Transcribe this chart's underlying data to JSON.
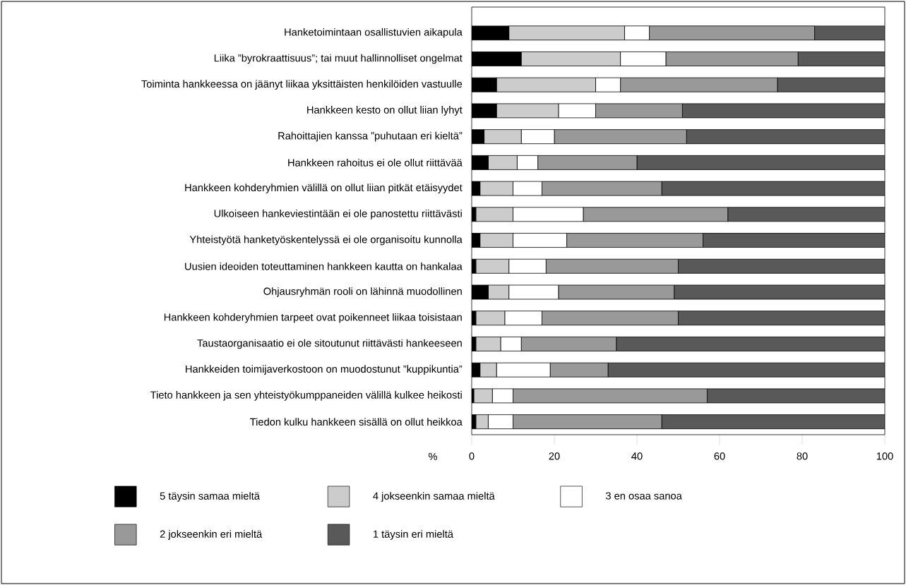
{
  "chart_data": {
    "type": "bar",
    "orientation": "horizontal",
    "stacked": true,
    "categories": [
      "Hanketoimintaan osallistuvien aikapula",
      "Liika ”byrokraattisuus”; tai muut hallinnolliset ongelmat",
      "Toiminta hankkeessa on jäänyt liikaa yksittäisten henkilöiden vastuulle",
      "Hankkeen kesto on ollut liian lyhyt",
      "Rahoittajien kanssa ”puhutaan eri kieltä”",
      "Hankkeen rahoitus ei ole ollut riittävää",
      "Hankkeen kohderyhmien välillä on ollut liian pitkät etäisyydet",
      "Ulkoiseen hankeviestintään ei ole panostettu riittävästi",
      "Yhteistyötä hanketyöskentelyssä ei ole organisoitu kunnolla",
      "Uusien ideoiden toteuttaminen hankkeen kautta on hankalaa",
      "Ohjausryhmän rooli on lähinnä muodollinen",
      "Hankkeen kohderyhmien tarpeet ovat poikenneet liikaa toisistaan",
      "Taustaorganisaatio ei ole sitoutunut riittävästi hankeeseen",
      "Hankkeiden toimijaverkostoon on muodostunut ”kuppikuntia”",
      "Tieto hankkeen ja sen yhteistyökumppaneiden välillä kulkee heikosti",
      "Tiedon kulku hankkeen sisällä on ollut heikkoa"
    ],
    "series": [
      {
        "name": "5 täysin samaa mieltä",
        "color": "#000000",
        "values": [
          9,
          12,
          6,
          6,
          3,
          4,
          2,
          1,
          2,
          1,
          4,
          1,
          1,
          2,
          0.5,
          1
        ]
      },
      {
        "name": "4 jokseenkin samaa mieltä",
        "color": "#cccccc",
        "values": [
          28,
          24,
          24,
          15,
          9,
          7,
          8,
          9,
          8,
          8,
          5,
          7,
          6,
          4,
          4.5,
          3
        ]
      },
      {
        "name": "3 en osaa sanoa",
        "color": "#ffffff",
        "values": [
          6,
          11,
          6,
          9,
          8,
          5,
          7,
          17,
          13,
          9,
          12,
          9,
          5,
          13,
          5,
          6
        ]
      },
      {
        "name": "2 jokseenkin eri mieltä",
        "color": "#999999",
        "values": [
          40,
          32,
          38,
          21,
          32,
          24,
          29,
          35,
          33,
          32,
          28,
          33,
          23,
          14,
          47,
          36
        ]
      },
      {
        "name": "1 täysin eri mieltä",
        "color": "#595959",
        "values": [
          17,
          21,
          26,
          49,
          48,
          60,
          54,
          38,
          44,
          50,
          51,
          50,
          65,
          67,
          43,
          54
        ]
      }
    ],
    "xlim": [
      0,
      100
    ],
    "xticks": [
      0,
      20,
      40,
      60,
      80,
      100
    ],
    "xlabel": "%",
    "legend": "bottom"
  }
}
